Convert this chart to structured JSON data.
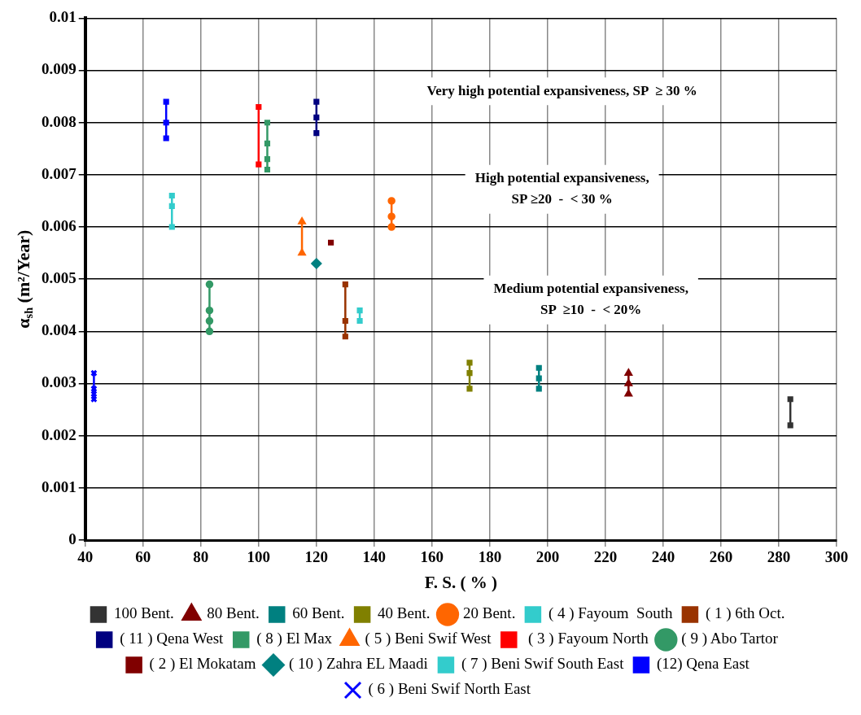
{
  "chart_data": {
    "type": "line",
    "xlabel": "F. S. ( % )",
    "ylabel": "α$_{sh}$ (m²/Year)",
    "xlim": [
      40,
      300
    ],
    "xticks": [
      40,
      60,
      80,
      100,
      120,
      140,
      160,
      180,
      200,
      220,
      240,
      260,
      280,
      300
    ],
    "ylim": [
      0,
      0.01
    ],
    "yticks": [
      0,
      0.001,
      0.002,
      0.003,
      0.004,
      0.005,
      0.006,
      0.007,
      0.008,
      0.009,
      0.01
    ],
    "grid": true,
    "legend": "bottom",
    "line_style": "solid",
    "annotations": [
      "Very high potential expansiveness, SP  ≥ 30 %",
      "High potential expansiveness,\nSP ≥20  -  < 30 %",
      "Medium potential expansiveness,\nSP  ≥10  -  < 20%"
    ],
    "series": [
      {
        "name": "100 Bent.",
        "color": "#333333",
        "marker": "square",
        "x": [
          284,
          284
        ],
        "values": [
          0.0027,
          0.0022
        ]
      },
      {
        "name": "80 Bent.",
        "color": "#800000",
        "marker": "triangle",
        "x": [
          228,
          228,
          228
        ],
        "values": [
          0.0032,
          0.003,
          0.0028
        ]
      },
      {
        "name": "60 Bent.",
        "color": "#008080",
        "marker": "square",
        "x": [
          197,
          197,
          197
        ],
        "values": [
          0.0033,
          0.0031,
          0.0029
        ]
      },
      {
        "name": "40 Bent.",
        "color": "#808000",
        "marker": "square",
        "x": [
          173,
          173,
          173
        ],
        "values": [
          0.0034,
          0.0032,
          0.0029
        ]
      },
      {
        "name": "20 Bent.",
        "color": "#ff6600",
        "marker": "circle",
        "x": [
          146,
          146,
          146
        ],
        "values": [
          0.0065,
          0.0062,
          0.006
        ]
      },
      {
        "name": "( 4 ) Fayoum  South",
        "color": "#33cccc",
        "marker": "square",
        "x": [
          135,
          135
        ],
        "values": [
          0.0044,
          0.0042
        ]
      },
      {
        "name": "( 1 ) 6th Oct.",
        "color": "#993300",
        "marker": "square",
        "x": [
          130,
          130,
          130
        ],
        "values": [
          0.0049,
          0.0042,
          0.0039
        ]
      },
      {
        "name": "( 11 ) Qena West",
        "color": "#000080",
        "marker": "square",
        "x": [
          120,
          120,
          120
        ],
        "values": [
          0.0084,
          0.0081,
          0.0078
        ]
      },
      {
        "name": "( 8 ) El Max",
        "color": "#339966",
        "marker": "square",
        "x": [
          103,
          103,
          103,
          103
        ],
        "values": [
          0.008,
          0.0076,
          0.0073,
          0.0071
        ]
      },
      {
        "name": "( 5 ) Beni Swif West",
        "color": "#ff6600",
        "marker": "triangle",
        "x": [
          115,
          115
        ],
        "values": [
          0.0061,
          0.0055
        ]
      },
      {
        "name": " ( 3 ) Fayoum North",
        "color": "#ff0000",
        "marker": "square",
        "x": [
          100,
          100
        ],
        "values": [
          0.0083,
          0.0072
        ]
      },
      {
        "name": "( 9 ) Abo Tartor",
        "color": "#339966",
        "marker": "circle",
        "x": [
          83,
          83,
          83,
          83
        ],
        "values": [
          0.0049,
          0.0044,
          0.0042,
          0.004
        ]
      },
      {
        "name": "( 2 ) El Mokatam",
        "color": "#800000",
        "marker": "square",
        "x": [
          125
        ],
        "values": [
          0.0057
        ]
      },
      {
        "name": "( 10 ) Zahra EL Maadi",
        "color": "#008080",
        "marker": "diamond",
        "x": [
          120
        ],
        "values": [
          0.0053
        ]
      },
      {
        "name": "( 7 ) Beni Swif South East",
        "color": "#33cccc",
        "marker": "square",
        "x": [
          70,
          70,
          70
        ],
        "values": [
          0.0066,
          0.0064,
          0.006
        ]
      },
      {
        "name": "(12) Qena East",
        "color": "#0000ff",
        "marker": "square",
        "x": [
          68,
          68,
          68
        ],
        "values": [
          0.0084,
          0.008,
          0.0077
        ]
      },
      {
        "name": "( 6 ) Beni Swif North East",
        "color": "#0000ff",
        "marker": "cross",
        "x": [
          43,
          43,
          43,
          43
        ],
        "values": [
          0.0032,
          0.0029,
          0.0028,
          0.0027
        ]
      }
    ]
  }
}
